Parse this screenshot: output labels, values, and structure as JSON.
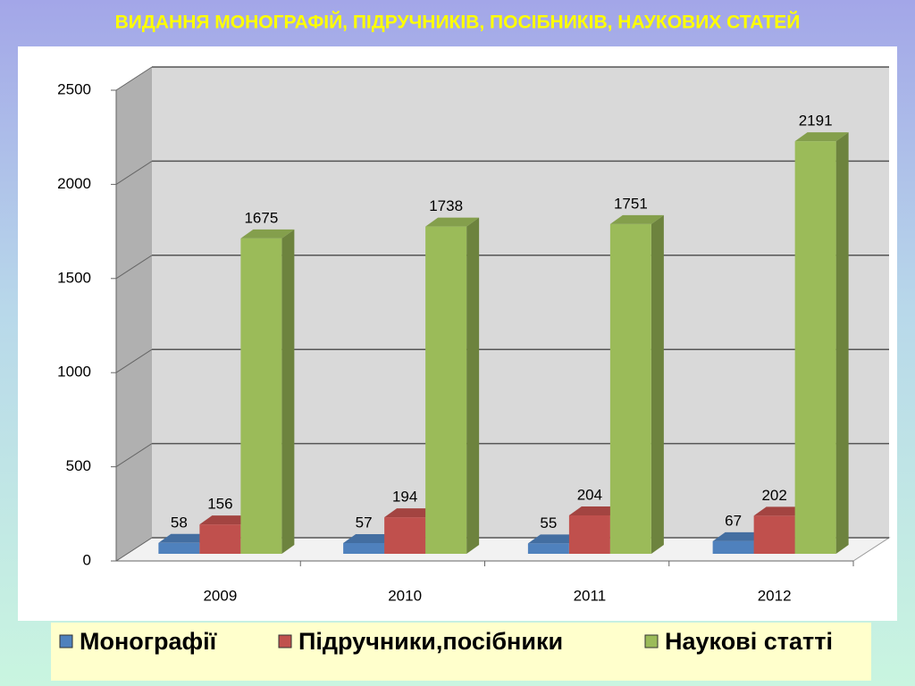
{
  "chart_data": {
    "type": "bar3d",
    "title": "ВИДАННЯ МОНОГРАФІЙ, ПІДРУЧНИКІВ, ПОСІБНИКІВ, НАУКОВИХ СТАТЕЙ",
    "categories": [
      "2009",
      "2010",
      "2011",
      "2012"
    ],
    "series": [
      {
        "name": "Монографії",
        "color": "#4f81bd",
        "values": [
          58,
          57,
          55,
          67
        ]
      },
      {
        "name": "Підручники,посібники",
        "color": "#c0504d",
        "values": [
          156,
          194,
          204,
          202
        ]
      },
      {
        "name": "Наукові статті",
        "color": "#9bbb59",
        "values": [
          1675,
          1738,
          1751,
          2191
        ]
      }
    ],
    "ylim": [
      0,
      2500
    ],
    "yticks": [
      0,
      500,
      1000,
      1500,
      2000,
      2500
    ],
    "grid": true
  }
}
